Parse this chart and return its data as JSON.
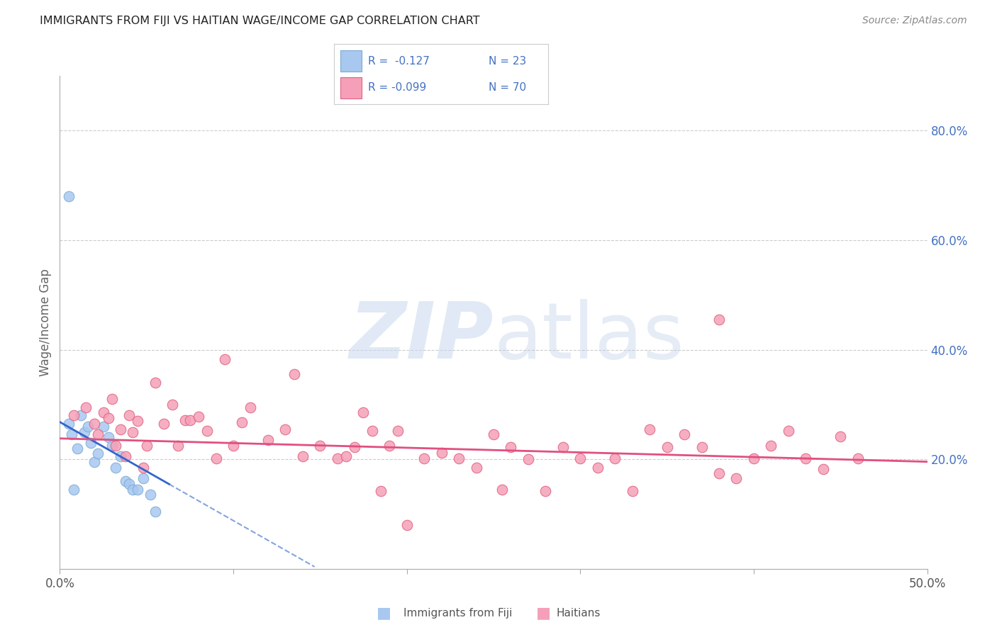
{
  "title": "IMMIGRANTS FROM FIJI VS HAITIAN WAGE/INCOME GAP CORRELATION CHART",
  "source": "Source: ZipAtlas.com",
  "ylabel": "Wage/Income Gap",
  "xlim": [
    0.0,
    0.5
  ],
  "ylim": [
    0.0,
    0.9
  ],
  "right_ytick_labels": [
    "20.0%",
    "40.0%",
    "60.0%",
    "80.0%"
  ],
  "right_ytick_values": [
    0.2,
    0.4,
    0.6,
    0.8
  ],
  "xtick_labels": [
    "0.0%",
    "",
    "",
    "",
    "",
    "50.0%"
  ],
  "xtick_values": [
    0.0,
    0.1,
    0.2,
    0.3,
    0.4,
    0.5
  ],
  "legend_fiji_r": "R =  -0.127",
  "legend_fiji_n": "N = 23",
  "legend_haiti_r": "R = -0.099",
  "legend_haiti_n": "N = 70",
  "fiji_color": "#a8c8f0",
  "fiji_edge_color": "#7baad4",
  "haiti_color": "#f5a0b8",
  "haiti_edge_color": "#e06080",
  "fiji_line_color": "#3366cc",
  "haiti_line_color": "#e05080",
  "fiji_x": [
    0.005,
    0.007,
    0.01,
    0.012,
    0.014,
    0.016,
    0.018,
    0.02,
    0.022,
    0.025,
    0.028,
    0.03,
    0.032,
    0.035,
    0.038,
    0.04,
    0.042,
    0.045,
    0.048,
    0.052,
    0.005,
    0.055,
    0.008
  ],
  "fiji_y": [
    0.265,
    0.245,
    0.22,
    0.28,
    0.25,
    0.26,
    0.23,
    0.195,
    0.21,
    0.26,
    0.24,
    0.225,
    0.185,
    0.205,
    0.16,
    0.155,
    0.145,
    0.145,
    0.165,
    0.135,
    0.68,
    0.105,
    0.145
  ],
  "haiti_x": [
    0.008,
    0.015,
    0.02,
    0.022,
    0.025,
    0.028,
    0.03,
    0.032,
    0.035,
    0.038,
    0.04,
    0.042,
    0.045,
    0.048,
    0.05,
    0.055,
    0.06,
    0.065,
    0.068,
    0.072,
    0.075,
    0.08,
    0.085,
    0.09,
    0.095,
    0.1,
    0.105,
    0.11,
    0.12,
    0.13,
    0.135,
    0.14,
    0.15,
    0.16,
    0.165,
    0.17,
    0.175,
    0.18,
    0.185,
    0.19,
    0.195,
    0.2,
    0.21,
    0.22,
    0.23,
    0.24,
    0.25,
    0.255,
    0.26,
    0.27,
    0.28,
    0.29,
    0.3,
    0.31,
    0.32,
    0.33,
    0.34,
    0.35,
    0.36,
    0.37,
    0.38,
    0.39,
    0.4,
    0.41,
    0.42,
    0.43,
    0.44,
    0.45,
    0.46,
    0.38
  ],
  "haiti_y": [
    0.28,
    0.295,
    0.265,
    0.245,
    0.285,
    0.275,
    0.31,
    0.225,
    0.255,
    0.205,
    0.28,
    0.25,
    0.27,
    0.185,
    0.225,
    0.34,
    0.265,
    0.3,
    0.225,
    0.272,
    0.272,
    0.278,
    0.252,
    0.202,
    0.382,
    0.225,
    0.268,
    0.295,
    0.235,
    0.255,
    0.355,
    0.205,
    0.225,
    0.202,
    0.205,
    0.222,
    0.285,
    0.252,
    0.142,
    0.225,
    0.252,
    0.08,
    0.202,
    0.212,
    0.202,
    0.185,
    0.245,
    0.145,
    0.222,
    0.2,
    0.142,
    0.222,
    0.202,
    0.185,
    0.202,
    0.142,
    0.255,
    0.222,
    0.245,
    0.222,
    0.175,
    0.165,
    0.202,
    0.225,
    0.252,
    0.202,
    0.182,
    0.242,
    0.202,
    0.455
  ]
}
